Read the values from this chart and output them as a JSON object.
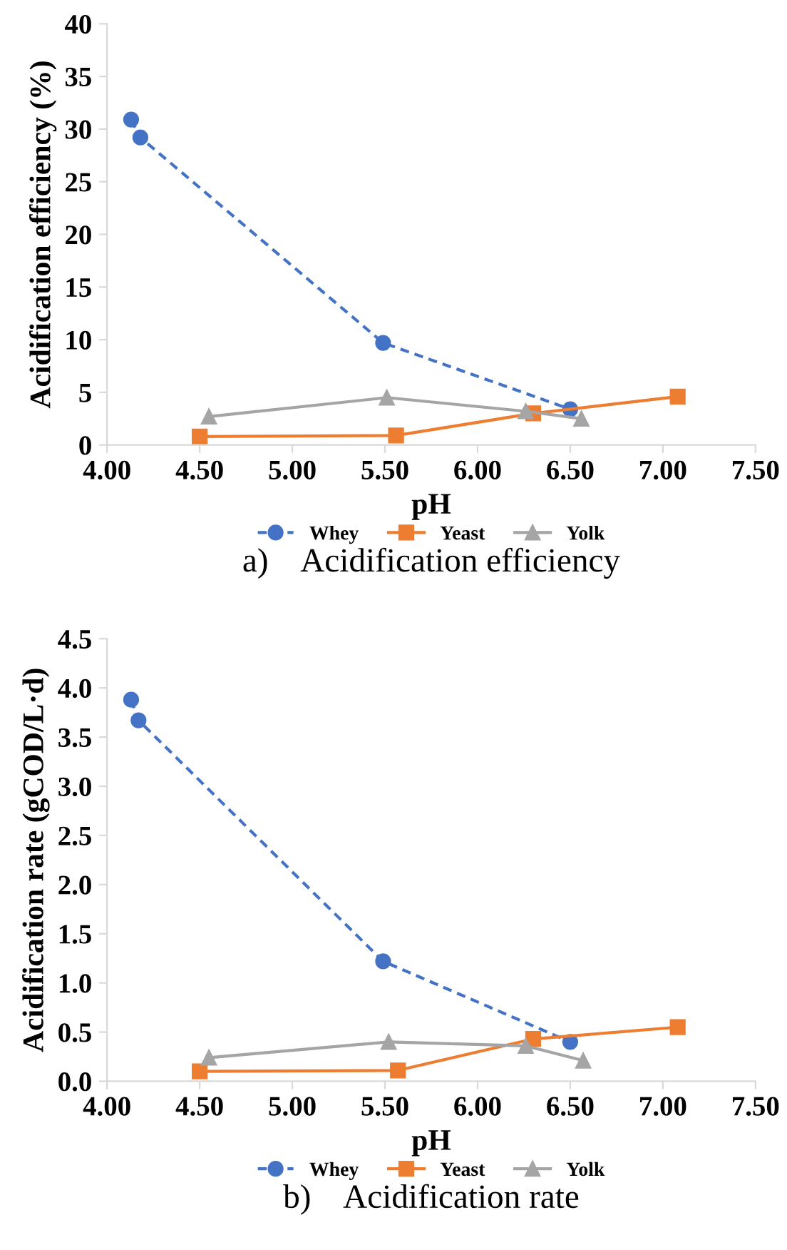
{
  "chart_data": [
    {
      "type": "line",
      "title": "a)    Acidification efficiency",
      "xlabel": "pH",
      "ylabel": "Acidification efficiency (%)",
      "xlim": [
        4.0,
        7.5
      ],
      "xticks": [
        {
          "value": 4.0,
          "label": "4.00"
        },
        {
          "value": 4.5,
          "label": "4.50"
        },
        {
          "value": 5.0,
          "label": "5.00"
        },
        {
          "value": 5.5,
          "label": "5.50"
        },
        {
          "value": 6.0,
          "label": "6.00"
        },
        {
          "value": 6.5,
          "label": "6.50"
        },
        {
          "value": 7.0,
          "label": "7.00"
        },
        {
          "value": 7.5,
          "label": "7.50"
        }
      ],
      "ylim": [
        0,
        40
      ],
      "yticks": [
        0,
        5,
        10,
        15,
        20,
        25,
        30,
        35,
        40
      ],
      "grid": false,
      "legend": "bottom",
      "series": [
        {
          "name": "Whey",
          "color": "#4472c4",
          "marker": "circle",
          "line_style": "dashed",
          "x": [
            4.13,
            4.18,
            5.49,
            6.5
          ],
          "values": [
            30.9,
            29.2,
            9.7,
            3.4
          ]
        },
        {
          "name": "Yeast",
          "color": "#ed7d31",
          "marker": "square",
          "line_style": "solid",
          "x": [
            4.5,
            5.56,
            6.3,
            7.08
          ],
          "values": [
            0.8,
            0.9,
            3.0,
            4.6
          ]
        },
        {
          "name": "Yolk",
          "color": "#a5a5a5",
          "marker": "triangle",
          "line_style": "solid",
          "x": [
            4.55,
            5.51,
            6.26,
            6.56
          ],
          "values": [
            2.7,
            4.5,
            3.2,
            2.5
          ]
        }
      ]
    },
    {
      "type": "line",
      "title": "b)    Acidification rate",
      "xlabel": "pH",
      "ylabel": "Acidification rate (gCOD/L·d)",
      "xlim": [
        4.0,
        7.5
      ],
      "xticks": [
        {
          "value": 4.0,
          "label": "4.00"
        },
        {
          "value": 4.5,
          "label": "4.50"
        },
        {
          "value": 5.0,
          "label": "5.00"
        },
        {
          "value": 5.5,
          "label": "5.50"
        },
        {
          "value": 6.0,
          "label": "6.00"
        },
        {
          "value": 6.5,
          "label": "6.50"
        },
        {
          "value": 7.0,
          "label": "7.00"
        },
        {
          "value": 7.5,
          "label": "7.50"
        }
      ],
      "ylim": [
        0,
        4.5
      ],
      "yticks": [
        {
          "value": 0,
          "label": "0.0"
        },
        {
          "value": 0.5,
          "label": "0.5"
        },
        {
          "value": 1,
          "label": "1.0"
        },
        {
          "value": 1.5,
          "label": "1.5"
        },
        {
          "value": 2,
          "label": "2.0"
        },
        {
          "value": 2.5,
          "label": "2.5"
        },
        {
          "value": 3,
          "label": "3.0"
        },
        {
          "value": 3.5,
          "label": "3.5"
        },
        {
          "value": 4,
          "label": "4.0"
        },
        {
          "value": 4.5,
          "label": "4.5"
        }
      ],
      "grid": false,
      "legend": "bottom",
      "series": [
        {
          "name": "Whey",
          "color": "#4472c4",
          "marker": "circle",
          "line_style": "dashed",
          "x": [
            4.13,
            4.17,
            5.49,
            6.5
          ],
          "values": [
            3.88,
            3.67,
            1.22,
            0.4
          ]
        },
        {
          "name": "Yeast",
          "color": "#ed7d31",
          "marker": "square",
          "line_style": "solid",
          "x": [
            4.5,
            5.57,
            6.3,
            7.08
          ],
          "values": [
            0.1,
            0.11,
            0.43,
            0.55
          ]
        },
        {
          "name": "Yolk",
          "color": "#a5a5a5",
          "marker": "triangle",
          "line_style": "solid",
          "x": [
            4.55,
            5.52,
            6.26,
            6.57
          ],
          "values": [
            0.24,
            0.4,
            0.36,
            0.21
          ]
        }
      ]
    }
  ]
}
